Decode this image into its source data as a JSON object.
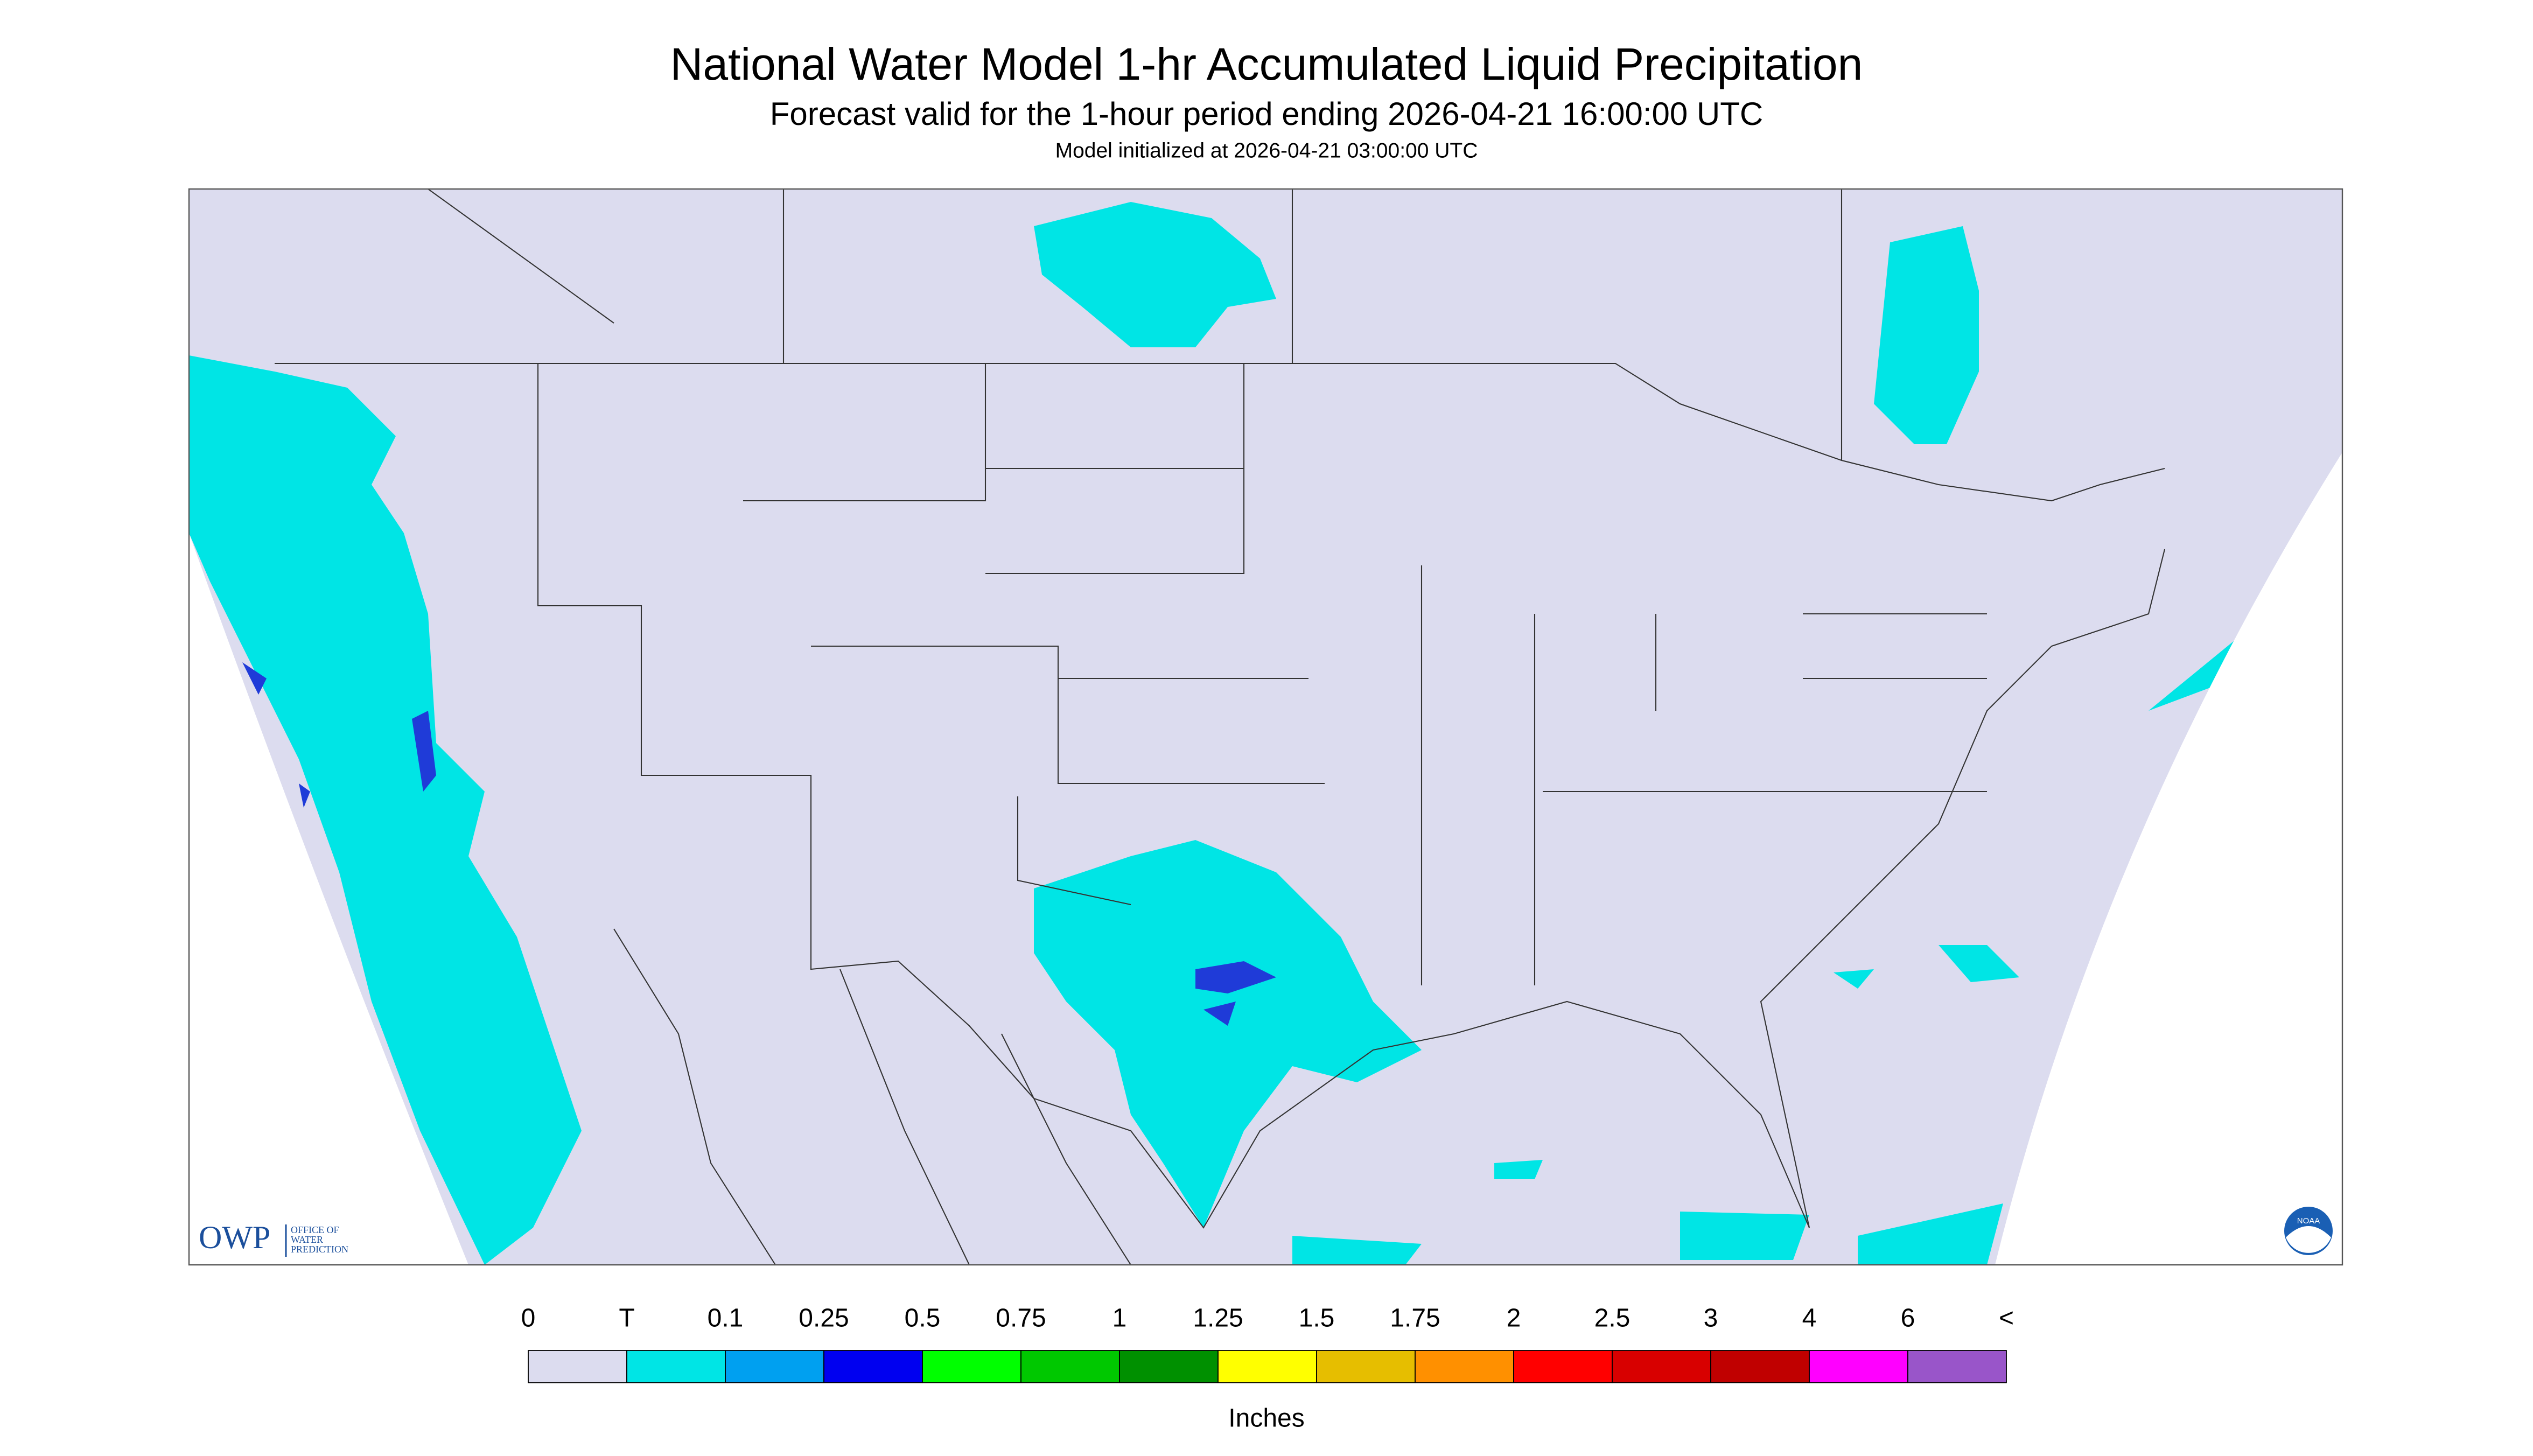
{
  "header": {
    "title": "National Water Model 1-hr Accumulated Liquid Precipitation",
    "subtitle": "Forecast valid for the 1-hour period ending 2026-04-21 16:00:00 UTC",
    "init": "Model initialized at 2026-04-21 03:00:00 UTC"
  },
  "legend": {
    "labels": [
      "0",
      "T",
      "0.1",
      "0.25",
      "0.5",
      "0.75",
      "1",
      "1.25",
      "1.5",
      "1.75",
      "2",
      "2.5",
      "3",
      "4",
      "6",
      "<"
    ],
    "colors": [
      "#dcdcef",
      "#00e5e5",
      "#00a0f0",
      "#0000f0",
      "#00ff00",
      "#00c800",
      "#009000",
      "#ffff00",
      "#e6be00",
      "#ff9000",
      "#ff0000",
      "#d80000",
      "#c00000",
      "#ff00ff",
      "#9955c9"
    ],
    "units": "Inches"
  },
  "logos": {
    "owp": "OWP",
    "owp_name": [
      "OFFICE OF",
      "WATER",
      "PREDICTION"
    ],
    "noaa": "NOAA"
  }
}
